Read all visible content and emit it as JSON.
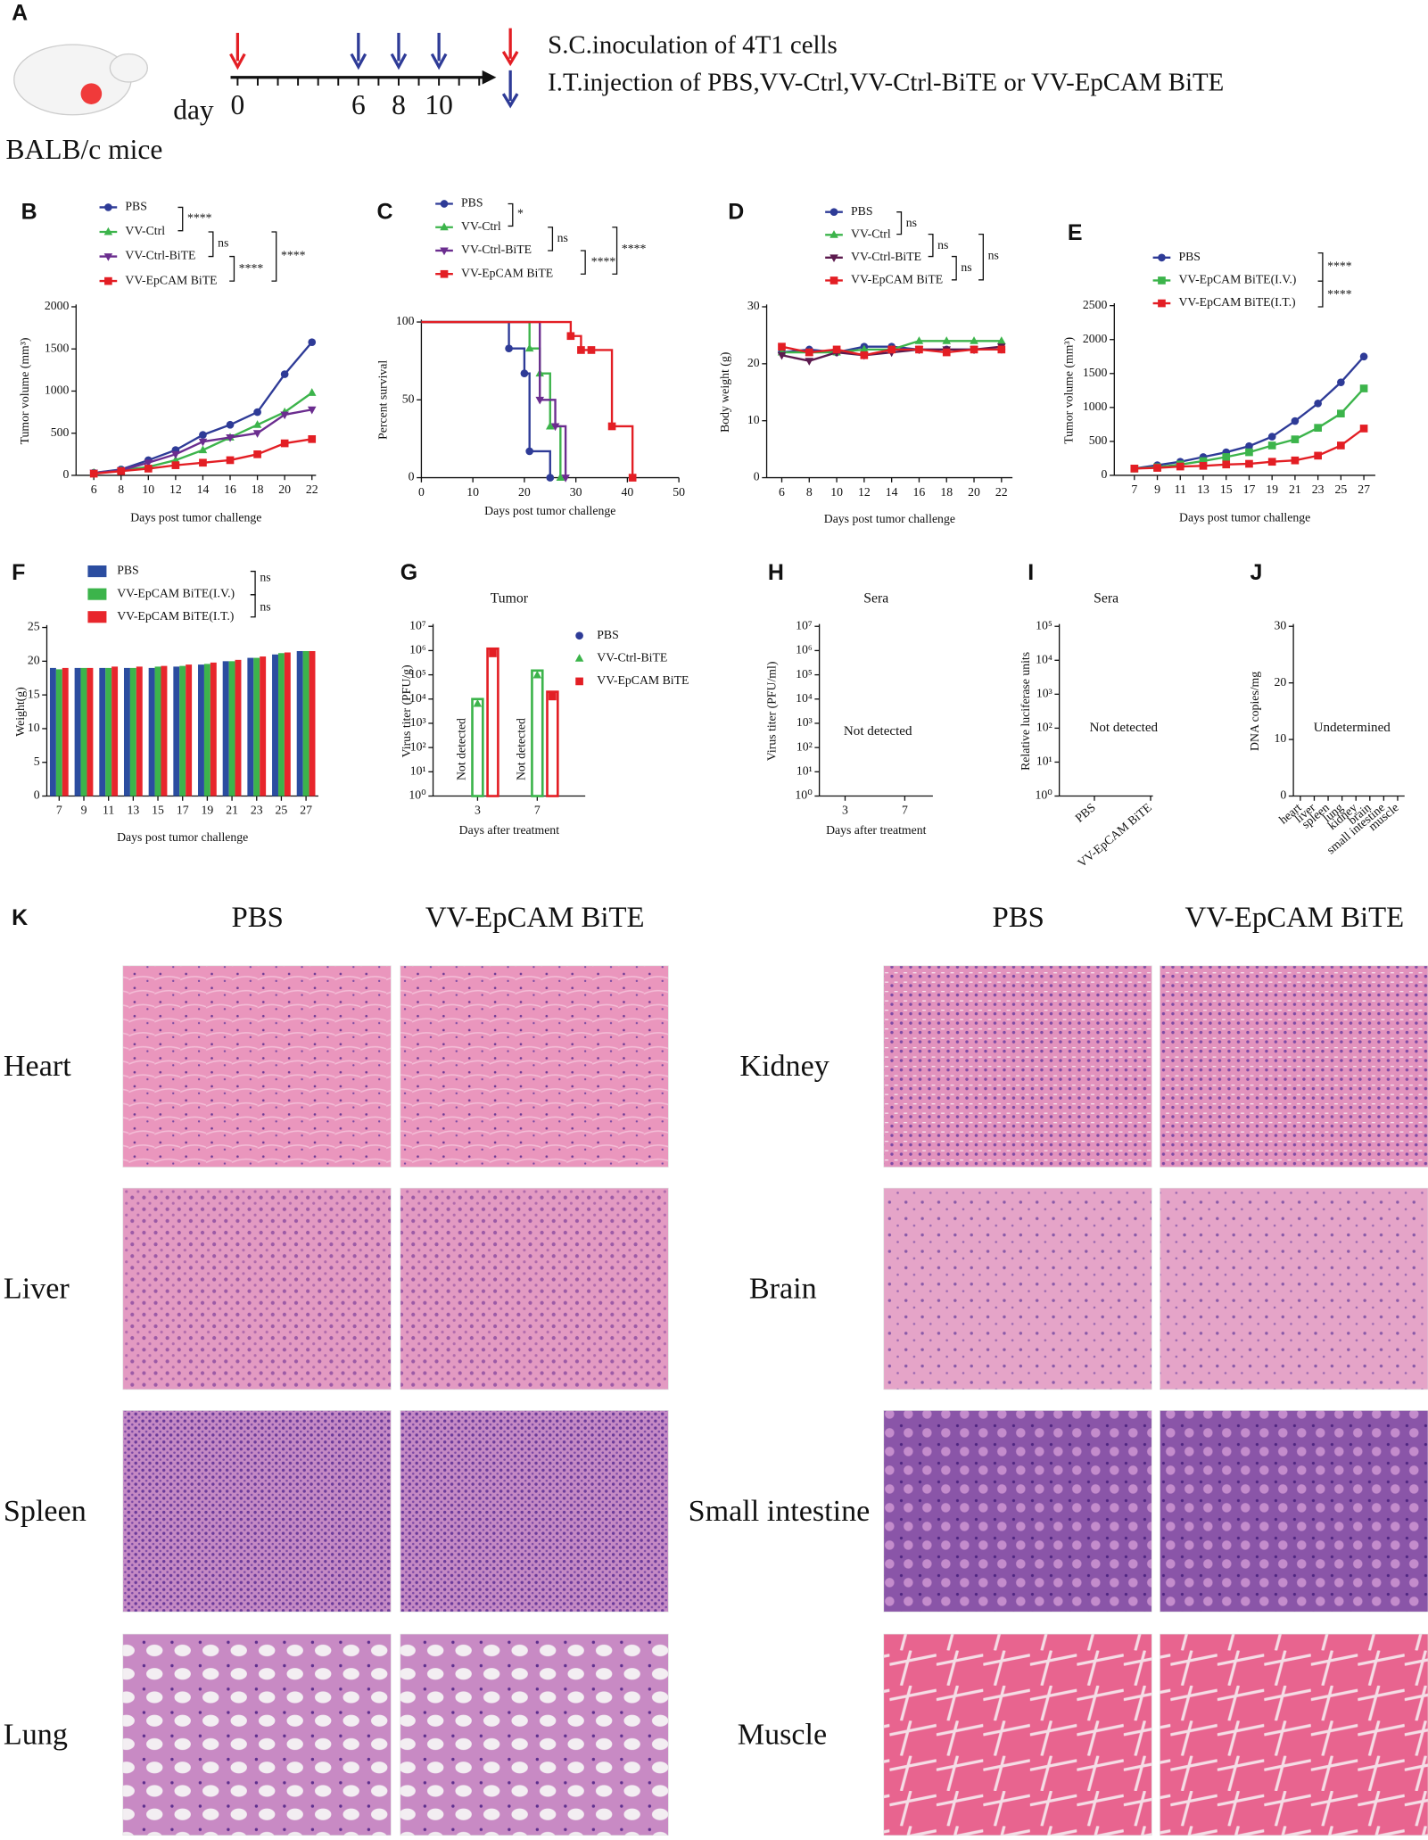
{
  "panel_labels": [
    "A",
    "B",
    "C",
    "D",
    "E",
    "F",
    "G",
    "H",
    "I",
    "J",
    "K"
  ],
  "schematic": {
    "mouse_label": "BALB/c mice",
    "day_word": "day",
    "days": [
      0,
      6,
      8,
      10
    ],
    "legend": [
      "S.C.inoculation of 4T1 cells",
      "I.T.injection of PBS,VV-Ctrl,VV-Ctrl-BiTE or VV-EpCAM BiTE"
    ]
  },
  "chart_data": [
    {
      "type": "line",
      "xlabel": "Days post tumor challenge",
      "ylabel": "Tumor volume (mm³)",
      "x": [
        6,
        8,
        10,
        12,
        14,
        16,
        18,
        20,
        22
      ],
      "xlim": [
        4.7,
        22.3
      ],
      "xticks": [
        6,
        8,
        10,
        12,
        14,
        16,
        18,
        20,
        22
      ],
      "ylim": [
        0,
        2000
      ],
      "yticks": [
        0,
        500,
        1000,
        1500,
        2000
      ],
      "series": [
        {
          "name": "PBS",
          "color": "#2e3b97",
          "marker": "circle",
          "values": [
            30,
            70,
            180,
            300,
            480,
            600,
            750,
            1200,
            1580
          ]
        },
        {
          "name": "VV-Ctrl",
          "color": "#3cb44b",
          "marker": "triangle-up",
          "values": [
            30,
            60,
            100,
            180,
            300,
            450,
            600,
            750,
            980
          ]
        },
        {
          "name": "VV-Ctrl-BiTE",
          "color": "#6b2d8f",
          "marker": "triangle-down",
          "values": [
            30,
            60,
            150,
            250,
            400,
            450,
            500,
            720,
            780
          ]
        },
        {
          "name": "VV-EpCAM BiTE",
          "color": "#e31e24",
          "marker": "square",
          "values": [
            20,
            50,
            80,
            120,
            150,
            180,
            250,
            380,
            430
          ]
        }
      ],
      "annotations": [
        "****",
        "ns",
        "****",
        "****"
      ]
    },
    {
      "type": "step",
      "xlabel": "Days post tumor challenge",
      "ylabel": "Percent survival",
      "xlim": [
        0,
        50
      ],
      "xticks": [
        0,
        10,
        20,
        30,
        40,
        50
      ],
      "ylim": [
        0,
        100
      ],
      "yticks": [
        0,
        50,
        100
      ],
      "series": [
        {
          "name": "PBS",
          "color": "#2e3b97",
          "marker": "circle",
          "x": [
            0,
            17,
            20,
            21,
            25
          ],
          "values": [
            100,
            83,
            67,
            17,
            0
          ]
        },
        {
          "name": "VV-Ctrl",
          "color": "#3cb44b",
          "marker": "triangle-up",
          "x": [
            0,
            21,
            23,
            25,
            27
          ],
          "values": [
            100,
            83,
            67,
            33,
            0
          ]
        },
        {
          "name": "VV-Ctrl-BiTE",
          "color": "#6b2d8f",
          "marker": "triangle-down",
          "x": [
            0,
            23,
            26,
            28
          ],
          "values": [
            100,
            50,
            33,
            0
          ]
        },
        {
          "name": "VV-EpCAM BiTE",
          "color": "#e31e24",
          "marker": "square",
          "x": [
            0,
            29,
            31,
            33,
            37,
            41
          ],
          "values": [
            100,
            91,
            82,
            82,
            33,
            0
          ]
        }
      ],
      "annotations": [
        "*",
        "ns",
        "****",
        "****"
      ]
    },
    {
      "type": "line",
      "xlabel": "Days post tumor challenge",
      "ylabel": "Body weight (g)",
      "x": [
        6,
        8,
        10,
        12,
        14,
        16,
        18,
        20,
        22
      ],
      "xlim": [
        4.9,
        22.8
      ],
      "xticks": [
        6,
        8,
        10,
        12,
        14,
        16,
        18,
        20,
        22
      ],
      "ylim": [
        0,
        30
      ],
      "yticks": [
        0,
        10,
        20,
        30
      ],
      "series": [
        {
          "name": "PBS",
          "color": "#2e3b97",
          "marker": "circle",
          "values": [
            22,
            22.5,
            22,
            23,
            23,
            22.5,
            22.5,
            22.5,
            22.5
          ]
        },
        {
          "name": "VV-Ctrl",
          "color": "#3cb44b",
          "marker": "triangle-up",
          "values": [
            22,
            22,
            22,
            22.5,
            22.5,
            24,
            24,
            24,
            24
          ]
        },
        {
          "name": "VV-Ctrl-BiTE",
          "color": "#5c1a4e",
          "marker": "triangle-down",
          "values": [
            21.5,
            20.5,
            22,
            21.5,
            22,
            22.5,
            22.5,
            22.5,
            23
          ]
        },
        {
          "name": "VV-EpCAM BiTE",
          "color": "#e31e24",
          "marker": "square",
          "values": [
            23,
            22,
            22.5,
            21.5,
            22.5,
            22.5,
            22,
            22.5,
            22.5
          ]
        }
      ],
      "annotations": [
        "ns",
        "ns",
        "ns",
        "ns"
      ]
    },
    {
      "type": "line",
      "xlabel": "Days post tumor challenge",
      "ylabel": "Tumor volume (mm³)",
      "x": [
        7,
        9,
        11,
        13,
        15,
        17,
        19,
        21,
        23,
        25,
        27
      ],
      "xlim": [
        5.25,
        28
      ],
      "xticks": [
        7,
        9,
        11,
        13,
        15,
        17,
        19,
        21,
        23,
        25,
        27
      ],
      "ylim": [
        0,
        2500
      ],
      "yticks": [
        0,
        500,
        1000,
        1500,
        2000,
        2500
      ],
      "series": [
        {
          "name": "PBS",
          "color": "#2e3b97",
          "marker": "circle",
          "values": [
            100,
            150,
            200,
            270,
            340,
            430,
            570,
            800,
            1060,
            1370,
            1750
          ]
        },
        {
          "name": "VV-EpCAM BiTE(I.V.)",
          "color": "#3cb44b",
          "marker": "square",
          "values": [
            100,
            120,
            160,
            210,
            270,
            340,
            440,
            530,
            700,
            910,
            1280
          ]
        },
        {
          "name": "VV-EpCAM BiTE(I.T.)",
          "color": "#e31e24",
          "marker": "square",
          "values": [
            100,
            110,
            130,
            140,
            160,
            170,
            200,
            220,
            290,
            440,
            690
          ]
        }
      ],
      "annotations": [
        "****",
        "****"
      ]
    },
    {
      "type": "bar",
      "xlabel": "Days post tumor challenge",
      "ylabel": "Weight(g)",
      "categories": [
        "7",
        "9",
        "11",
        "13",
        "15",
        "17",
        "19",
        "21",
        "23",
        "25",
        "27"
      ],
      "ylim": [
        0,
        25
      ],
      "yticks": [
        0,
        5,
        10,
        15,
        20,
        25
      ],
      "series": [
        {
          "name": "PBS",
          "color": "#2b4da0",
          "marker": "square",
          "values": [
            19,
            19,
            19,
            19,
            19,
            19.2,
            19.5,
            20,
            20.5,
            21,
            21.5
          ]
        },
        {
          "name": "VV-EpCAM BiTE(I.V.)",
          "color": "#3cb44b",
          "marker": "square",
          "values": [
            18.8,
            19,
            19,
            19,
            19.2,
            19.3,
            19.6,
            20,
            20.5,
            21.2,
            21.5
          ]
        },
        {
          "name": "VV-EpCAM BiTE(I.T.)",
          "color": "#e8262c",
          "marker": "square",
          "values": [
            19,
            19,
            19.2,
            19.2,
            19.3,
            19.5,
            19.8,
            20.2,
            20.7,
            21.3,
            21.5
          ]
        }
      ],
      "annotations": [
        "ns",
        "ns"
      ]
    },
    {
      "type": "bar",
      "log_scale": true,
      "title": "Tumor",
      "xlabel": "Days after treatment",
      "ylabel": "Virus titer (PFU/g)",
      "categories": [
        "3",
        "7"
      ],
      "ylim": [
        1,
        10000000
      ],
      "yticks": [
        {
          "value": 1,
          "label": "10⁰"
        },
        {
          "value": 10,
          "label": "10¹"
        },
        {
          "value": 100,
          "label": "10²"
        },
        {
          "value": 1000,
          "label": "10³"
        },
        {
          "value": 10000,
          "label": "10⁴"
        },
        {
          "value": 100000,
          "label": "10⁵"
        },
        {
          "value": 1000000,
          "label": "10⁶"
        },
        {
          "value": 10000000,
          "label": "10⁷"
        }
      ],
      "series": [
        {
          "name": "PBS",
          "color": "#2e3b97",
          "marker": "circle",
          "values": [
            null,
            null
          ]
        },
        {
          "name": "VV-Ctrl-BiTE",
          "color": "#3cb44b",
          "marker": "triangle-up",
          "values": [
            10000,
            150000
          ]
        },
        {
          "name": "VV-EpCAM BiTE",
          "color": "#e31e24",
          "marker": "square",
          "values": [
            1200000,
            20000
          ]
        }
      ],
      "annotations": [
        "Not detected",
        "Not detected"
      ]
    },
    {
      "type": "scatter",
      "log_scale": true,
      "title": "Sera",
      "xlabel": "Days after treatment",
      "ylabel": "Virus titer (PFU/ml)",
      "categories": [
        "3",
        "7"
      ],
      "ylim": [
        1,
        10000000
      ],
      "yticks": [
        {
          "value": 1,
          "label": "10⁰"
        },
        {
          "value": 10,
          "label": "10¹"
        },
        {
          "value": 100,
          "label": "10²"
        },
        {
          "value": 1000,
          "label": "10³"
        },
        {
          "value": 10000,
          "label": "10⁴"
        },
        {
          "value": 100000,
          "label": "10⁵"
        },
        {
          "value": 1000000,
          "label": "10⁶"
        },
        {
          "value": 10000000,
          "label": "10⁷"
        }
      ],
      "annotations": [
        "Not detected"
      ]
    },
    {
      "type": "scatter",
      "log_scale": true,
      "title": "Sera",
      "ylabel": "Relative luciferase units",
      "categories": [
        "PBS",
        "VV-EpCAM BiTE"
      ],
      "ylim": [
        1,
        100000
      ],
      "yticks": [
        {
          "value": 1,
          "label": "10⁰"
        },
        {
          "value": 10,
          "label": "10¹"
        },
        {
          "value": 100,
          "label": "10²"
        },
        {
          "value": 1000,
          "label": "10³"
        },
        {
          "value": 10000,
          "label": "10⁴"
        },
        {
          "value": 100000,
          "label": "10⁵"
        }
      ],
      "annotations": [
        "Not detected"
      ]
    },
    {
      "type": "bar",
      "ylabel": "DNA copies/mg",
      "categories": [
        "heart",
        "liver",
        "spleen",
        "lung",
        "kidney",
        "brain",
        "small intestine",
        "muscle"
      ],
      "ylim": [
        0,
        30
      ],
      "yticks": [
        0,
        10,
        20,
        30
      ],
      "annotations": [
        "Undetermined"
      ]
    }
  ],
  "histology": {
    "columns": [
      "PBS",
      "VV-EpCAM BiTE",
      "PBS",
      "VV-EpCAM BiTE"
    ],
    "left_rows": [
      "Heart",
      "Liver",
      "Spleen",
      "Lung"
    ],
    "right_rows": [
      "Kidney",
      "Brain",
      "Small intestine",
      "Muscle"
    ]
  }
}
